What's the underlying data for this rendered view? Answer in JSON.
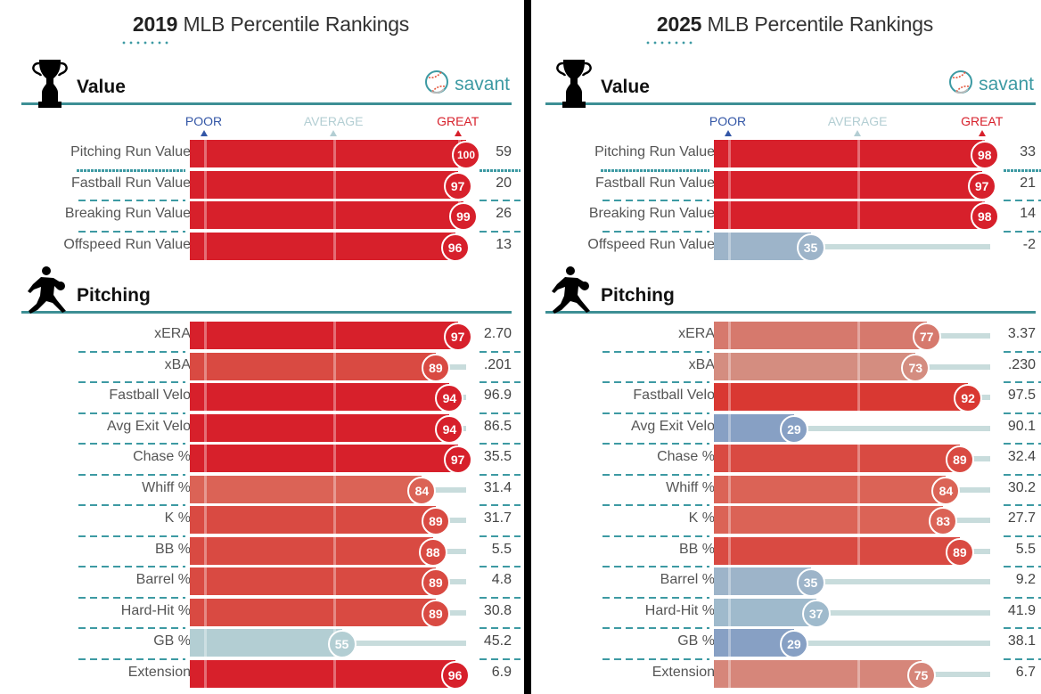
{
  "chart_data": [
    {
      "type": "bar",
      "orientation": "horizontal",
      "title_year": "2019",
      "title_rest": "MLB Percentile Rankings",
      "xlim": [
        0,
        100
      ],
      "scale_labels": {
        "poor": "POOR",
        "average": "AVERAGE",
        "great": "GREAT"
      },
      "sections": [
        {
          "name": "Value",
          "icon": "trophy-icon",
          "brand": "savant",
          "rows": [
            {
              "label": "Pitching Run Value",
              "percentile": 100,
              "value": "59",
              "color": "#d7202b"
            },
            {
              "label": "Fastball Run Value",
              "percentile": 97,
              "value": "20",
              "color": "#d7202b"
            },
            {
              "label": "Breaking Run Value",
              "percentile": 99,
              "value": "26",
              "color": "#d7202b"
            },
            {
              "label": "Offspeed Run Value",
              "percentile": 96,
              "value": "13",
              "color": "#d7202b"
            }
          ]
        },
        {
          "name": "Pitching",
          "icon": "pitcher-icon",
          "rows": [
            {
              "label": "xERA",
              "percentile": 97,
              "value": "2.70",
              "color": "#d7202b"
            },
            {
              "label": "xBA",
              "percentile": 89,
              "value": ".201",
              "color": "#d94a42"
            },
            {
              "label": "Fastball Velo",
              "percentile": 94,
              "value": "96.9",
              "color": "#d7202b"
            },
            {
              "label": "Avg Exit Velo",
              "percentile": 94,
              "value": "86.5",
              "color": "#d7202b"
            },
            {
              "label": "Chase %",
              "percentile": 97,
              "value": "35.5",
              "color": "#d7202b"
            },
            {
              "label": "Whiff %",
              "percentile": 84,
              "value": "31.4",
              "color": "#db6356"
            },
            {
              "label": "K %",
              "percentile": 89,
              "value": "31.7",
              "color": "#d94a42"
            },
            {
              "label": "BB %",
              "percentile": 88,
              "value": "5.5",
              "color": "#d94a42"
            },
            {
              "label": "Barrel %",
              "percentile": 89,
              "value": "4.8",
              "color": "#d94a42"
            },
            {
              "label": "Hard-Hit %",
              "percentile": 89,
              "value": "30.8",
              "color": "#d94a42"
            },
            {
              "label": "GB %",
              "percentile": 55,
              "value": "45.2",
              "color": "#b3ced3"
            },
            {
              "label": "Extension",
              "percentile": 96,
              "value": "6.9",
              "color": "#d7202b"
            }
          ]
        }
      ]
    },
    {
      "type": "bar",
      "orientation": "horizontal",
      "title_year": "2025",
      "title_rest": "MLB Percentile Rankings",
      "xlim": [
        0,
        100
      ],
      "scale_labels": {
        "poor": "POOR",
        "average": "AVERAGE",
        "great": "GREAT"
      },
      "sections": [
        {
          "name": "Value",
          "icon": "trophy-icon",
          "brand": "savant",
          "rows": [
            {
              "label": "Pitching Run Value",
              "percentile": 98,
              "value": "33",
              "color": "#d7202b"
            },
            {
              "label": "Fastball Run Value",
              "percentile": 97,
              "value": "21",
              "color": "#d7202b"
            },
            {
              "label": "Breaking Run Value",
              "percentile": 98,
              "value": "14",
              "color": "#d7202b"
            },
            {
              "label": "Offspeed Run Value",
              "percentile": 35,
              "value": "-2",
              "color": "#9db4c9"
            }
          ]
        },
        {
          "name": "Pitching",
          "icon": "pitcher-icon",
          "rows": [
            {
              "label": "xERA",
              "percentile": 77,
              "value": "3.37",
              "color": "#d6796d"
            },
            {
              "label": "xBA",
              "percentile": 73,
              "value": ".230",
              "color": "#d48d80"
            },
            {
              "label": "Fastball Velo",
              "percentile": 92,
              "value": "97.5",
              "color": "#d93832"
            },
            {
              "label": "Avg Exit Velo",
              "percentile": 29,
              "value": "90.1",
              "color": "#87a0c4"
            },
            {
              "label": "Chase %",
              "percentile": 89,
              "value": "32.4",
              "color": "#d94a42"
            },
            {
              "label": "Whiff %",
              "percentile": 84,
              "value": "30.2",
              "color": "#db6356"
            },
            {
              "label": "K %",
              "percentile": 83,
              "value": "27.7",
              "color": "#db6356"
            },
            {
              "label": "BB %",
              "percentile": 89,
              "value": "5.5",
              "color": "#d94a42"
            },
            {
              "label": "Barrel %",
              "percentile": 35,
              "value": "9.2",
              "color": "#9db4c9"
            },
            {
              "label": "Hard-Hit %",
              "percentile": 37,
              "value": "41.9",
              "color": "#9fbacc"
            },
            {
              "label": "GB %",
              "percentile": 29,
              "value": "38.1",
              "color": "#87a0c4"
            },
            {
              "label": "Extension",
              "percentile": 75,
              "value": "6.7",
              "color": "#d6867a"
            }
          ]
        }
      ]
    }
  ],
  "colors": {
    "poor": "#3356a6",
    "average": "#b3ced3",
    "great": "#d7202b",
    "accent": "#3d8f95",
    "track": "#c8dcdc"
  }
}
